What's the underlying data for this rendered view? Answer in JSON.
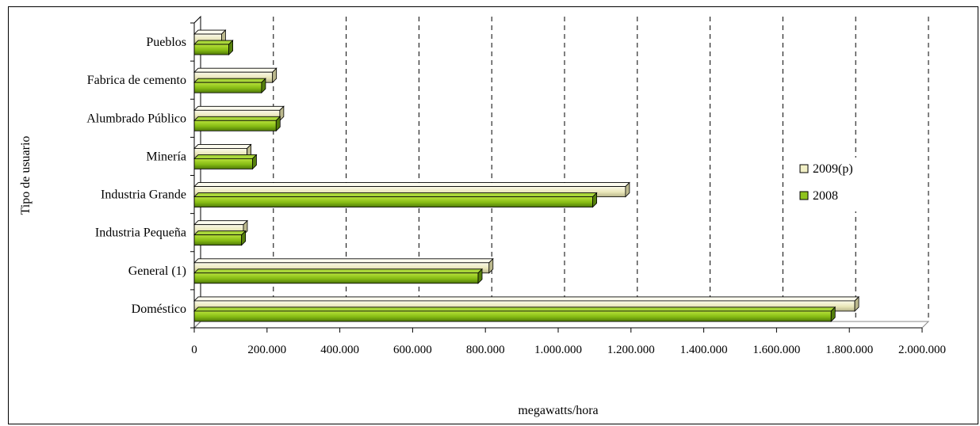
{
  "chart_data": {
    "type": "bar",
    "orientation": "horizontal",
    "title": "",
    "xlabel": "megawatts/hora",
    "ylabel": "Tipo de usuario",
    "xlim": [
      0,
      2000000
    ],
    "x_ticks": [
      "0",
      "200.000",
      "400.000",
      "600.000",
      "800.000",
      "1.000.000",
      "1.200.000",
      "1.400.000",
      "1.600.000",
      "1.800.000",
      "2.000.000"
    ],
    "x_tick_values": [
      0,
      200000,
      400000,
      600000,
      800000,
      1000000,
      1200000,
      1400000,
      1600000,
      1800000,
      2000000
    ],
    "grid": "vertical dashed",
    "legend_position": "right",
    "categories": [
      "Pueblos",
      "Fabrica de cemento",
      "Alumbrado Público",
      "Minería",
      "Industria Grande",
      "Industria Pequeña",
      "General (1)",
      "Doméstico"
    ],
    "series": [
      {
        "name": "2009(p)",
        "color": "#f2f0c6",
        "values": [
          75000,
          215000,
          235000,
          145000,
          1185000,
          135000,
          810000,
          1815000
        ]
      },
      {
        "name": "2008",
        "color": "#8fc31f",
        "values": [
          95000,
          185000,
          225000,
          160000,
          1095000,
          130000,
          780000,
          1750000
        ]
      }
    ]
  }
}
